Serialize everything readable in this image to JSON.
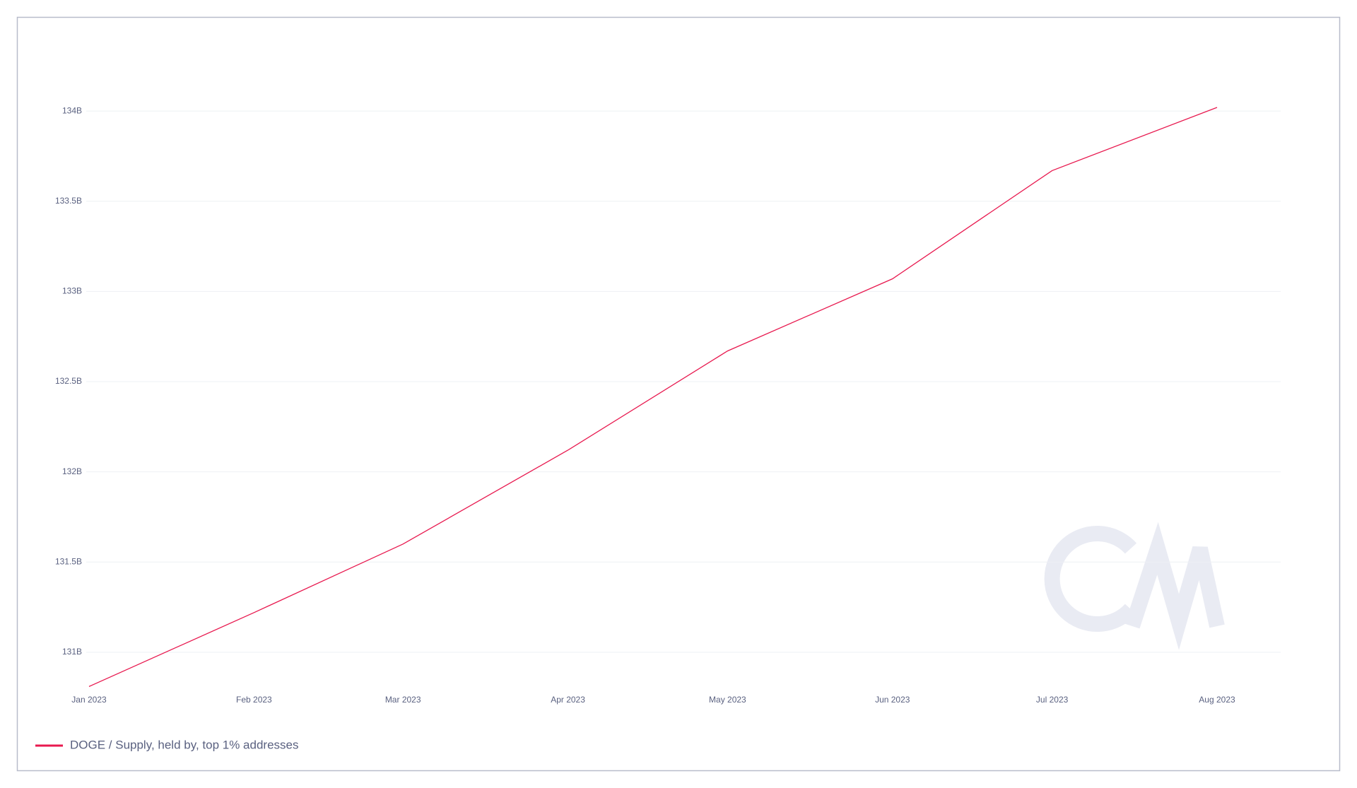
{
  "chart_data": {
    "type": "line",
    "x": [
      "2023-01",
      "2023-02",
      "2023-03",
      "2023-04",
      "2023-05",
      "2023-06",
      "2023-07",
      "2023-08"
    ],
    "xlim": [
      "2023-01",
      "2023-08"
    ],
    "xticks": [
      {
        "value": "2023-01",
        "label": "Jan 2023"
      },
      {
        "value": "2023-02",
        "label": "Feb 2023"
      },
      {
        "value": "2023-03",
        "label": "Mar 2023"
      },
      {
        "value": "2023-04",
        "label": "Apr 2023"
      },
      {
        "value": "2023-05",
        "label": "May 2023"
      },
      {
        "value": "2023-06",
        "label": "Jun 2023"
      },
      {
        "value": "2023-07",
        "label": "Jul 2023"
      },
      {
        "value": "2023-08",
        "label": "Aug 2023"
      }
    ],
    "ylim": [
      130.8,
      134.4
    ],
    "yticks": [
      {
        "value": 131,
        "label": "131B"
      },
      {
        "value": 131.5,
        "label": "131.5B"
      },
      {
        "value": 132,
        "label": "132B"
      },
      {
        "value": 132.5,
        "label": "132.5B"
      },
      {
        "value": 133,
        "label": "133B"
      },
      {
        "value": 133.5,
        "label": "133.5B"
      },
      {
        "value": 134,
        "label": "134B"
      }
    ],
    "grid": true,
    "legend": "bottom-left",
    "series": [
      {
        "name": "DOGE / Supply, held by, top 1% addresses",
        "color": "#e8194f",
        "values": [
          130.81,
          131.22,
          131.6,
          132.12,
          132.67,
          133.07,
          133.67,
          134.02
        ]
      }
    ]
  }
}
